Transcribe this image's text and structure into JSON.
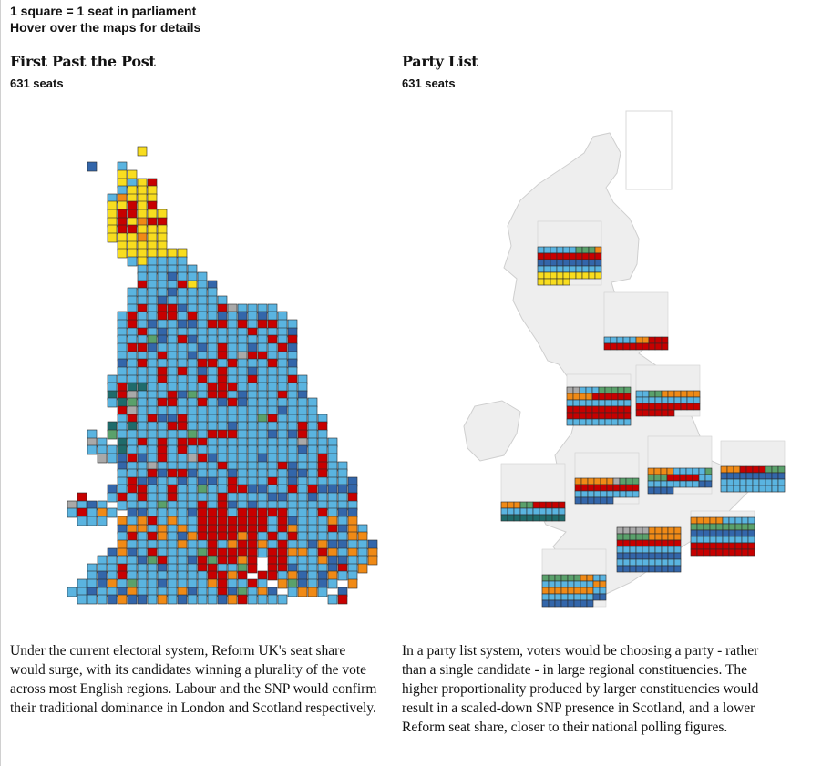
{
  "notes": {
    "line1": "1 square = 1 seat in parliament",
    "line2": "Hover over the maps for details"
  },
  "panels": [
    {
      "title": "First Past the Post",
      "seats": "631 seats",
      "description": "Under the current electoral system, Reform UK's seat share would surge, with its candidates winning a plurality of the vote across most English regions. Labour and the SNP would confirm their traditional dominance in London and Scotland respectively."
    },
    {
      "title": "Party List",
      "seats": "631 seats",
      "description": "In a party list system, voters would be choosing a party - rather than a single candidate - in large regional constituencies. The higher proportionality produced by larger constituencies would result in a scaled-down SNP presence in Scotland, and a lower Reform seat share, closer to their national polling figures."
    }
  ],
  "party_colors": {
    "reform": "#5ab4e0",
    "labour": "#c70000",
    "conservative": "#3366aa",
    "libdem": "#f08a16",
    "snp": "#f8dd1f",
    "green": "#5aa16b",
    "plaid": "#1f6b6b",
    "other": "#a9a9a9",
    "empty": "#eeeeee"
  }
}
